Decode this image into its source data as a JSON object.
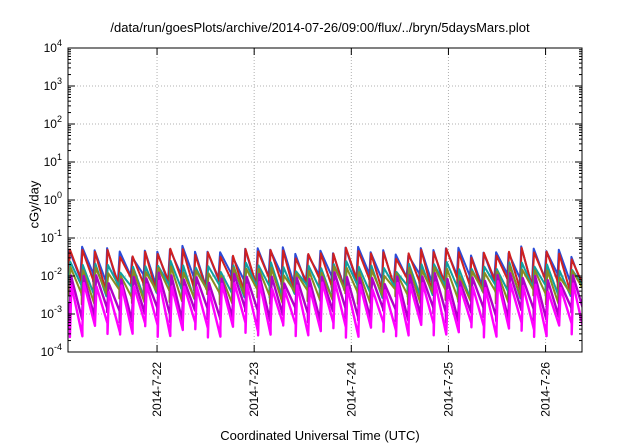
{
  "chart_data": {
    "type": "line",
    "title": "/data/run/goesPlots/archive/2014-07-26/09:00/flux/../bryn/5daysMars.plot",
    "xlabel": "Coordinated Universal Time (UTC)",
    "ylabel": "cGy/day",
    "yscale": "log",
    "ylim": [
      0.0001,
      10000
    ],
    "xlim": [
      "2014-07-21 02:00",
      "2014-07-26 09:00"
    ],
    "grid": true,
    "y_ticks": [
      {
        "value": 0.0001,
        "base": "10",
        "exp": "-4"
      },
      {
        "value": 0.001,
        "base": "10",
        "exp": "-3"
      },
      {
        "value": 0.01,
        "base": "10",
        "exp": "-2"
      },
      {
        "value": 0.1,
        "base": "10",
        "exp": "-1"
      },
      {
        "value": 1,
        "base": "10",
        "exp": "0"
      },
      {
        "value": 10,
        "base": "10",
        "exp": "1"
      },
      {
        "value": 100,
        "base": "10",
        "exp": "2"
      },
      {
        "value": 1000,
        "base": "10",
        "exp": "3"
      },
      {
        "value": 10000,
        "base": "10",
        "exp": "4"
      }
    ],
    "x_ticks": [
      "2014-7-22",
      "2014-7-23",
      "2014-7-24",
      "2014-7-25",
      "2014-7-26"
    ],
    "sawtooth_period_hours": 3.1,
    "series": [
      {
        "color": "#2b4bd8",
        "peak": 0.05,
        "trough": 0.008
      },
      {
        "color": "#d02020",
        "peak": 0.045,
        "trough": 0.006
      },
      {
        "color": "#10a0a0",
        "peak": 0.02,
        "trough": 0.004
      },
      {
        "color": "#8a8a20",
        "peak": 0.015,
        "trough": 0.003
      },
      {
        "color": "#b000c8",
        "peak": 0.01,
        "trough": 0.001
      },
      {
        "color": "#ff00ff",
        "peak": 0.006,
        "trough": 0.0004
      }
    ]
  }
}
